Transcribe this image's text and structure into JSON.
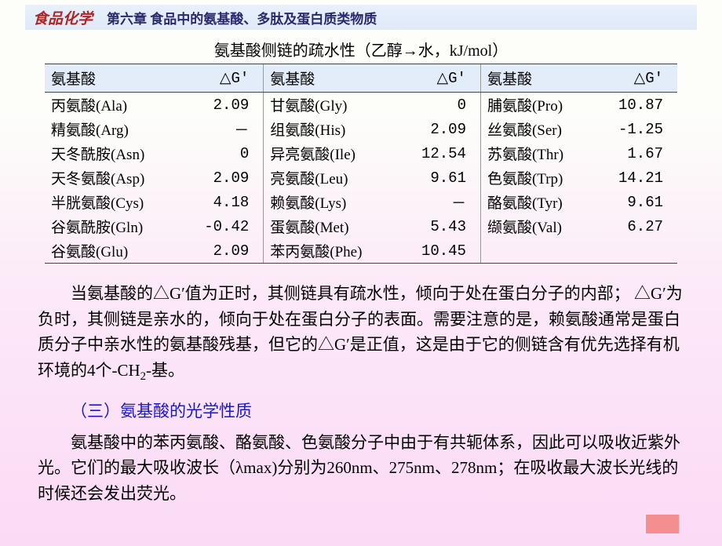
{
  "header": {
    "subject": "食品化学",
    "chapter": "第六章 食品中的氨基酸、多肽及蛋白质类物质"
  },
  "table": {
    "title": "氨基酸侧链的疏水性（乙醇→水，kJ/mol）",
    "header_amino": "氨基酸",
    "header_dg": "△G′",
    "header_bg": "#e3edf9",
    "border_color": "#444444",
    "divider_color": "#999999",
    "font_size": 19,
    "col1": [
      {
        "name": "丙氨酸(Ala)",
        "dg": "2.09"
      },
      {
        "name": "精氨酸(Arg)",
        "dg": "－"
      },
      {
        "name": "天冬酰胺(Asn)",
        "dg": "0"
      },
      {
        "name": "天冬氨酸(Asp)",
        "dg": "2.09"
      },
      {
        "name": "半胱氨酸(Cys)",
        "dg": "4.18"
      },
      {
        "name": "谷氨酰胺(Gln)",
        "dg": "-0.42"
      },
      {
        "name": "谷氨酸(Glu)",
        "dg": "2.09"
      }
    ],
    "col2": [
      {
        "name": "甘氨酸(Gly)",
        "dg": "0"
      },
      {
        "name": "组氨酸(His)",
        "dg": "2.09"
      },
      {
        "name": "异亮氨酸(Ile)",
        "dg": "12.54"
      },
      {
        "name": "亮氨酸(Leu)",
        "dg": "9.61"
      },
      {
        "name": "赖氨酸(Lys)",
        "dg": "－"
      },
      {
        "name": "蛋氨酸(Met)",
        "dg": "5.43"
      },
      {
        "name": "苯丙氨酸(Phe)",
        "dg": "10.45"
      }
    ],
    "col3": [
      {
        "name": "脯氨酸(Pro)",
        "dg": "10.87"
      },
      {
        "name": "丝氨酸(Ser)",
        "dg": "-1.25"
      },
      {
        "name": "苏氨酸(Thr)",
        "dg": "1.67"
      },
      {
        "name": "色氨酸(Trp)",
        "dg": "14.21"
      },
      {
        "name": "酪氨酸(Tyr)",
        "dg": "9.61"
      },
      {
        "name": "缬氨酸(Val)",
        "dg": "6.27"
      },
      {
        "name": "",
        "dg": ""
      }
    ]
  },
  "paragraph1_pre": "当氨基酸的△G′值为正时，其侧链具有疏水性，倾向于处在蛋白分子的内部； △G′为负时，其侧链是亲水的，倾向于处在蛋白分子的表面。需要注意的是，赖氨酸通常是蛋白质分子中亲水性的氨基酸残基，但它的△G′是正值，这是由于它的侧链含有优先选择有机环境的4个-CH",
  "paragraph1_sub": "2",
  "paragraph1_post": "-基。",
  "section_heading": "（三）氨基酸的光学性质",
  "paragraph2": "氨基酸中的苯丙氨酸、酪氨酸、色氨酸分子中由于有共轭体系，因此可以吸收近紫外光。它们的最大吸收波长（λmax)分别为260nm、275nm、278nm；在吸收最大波长光线的时候还会发出荧光。",
  "colors": {
    "subject_color": "#b02424",
    "chapter_color": "#2a2a6a",
    "heading_color": "#1818c8",
    "header_bar_bg": "#e3edf9",
    "corner_bg": "#f58e8e"
  }
}
